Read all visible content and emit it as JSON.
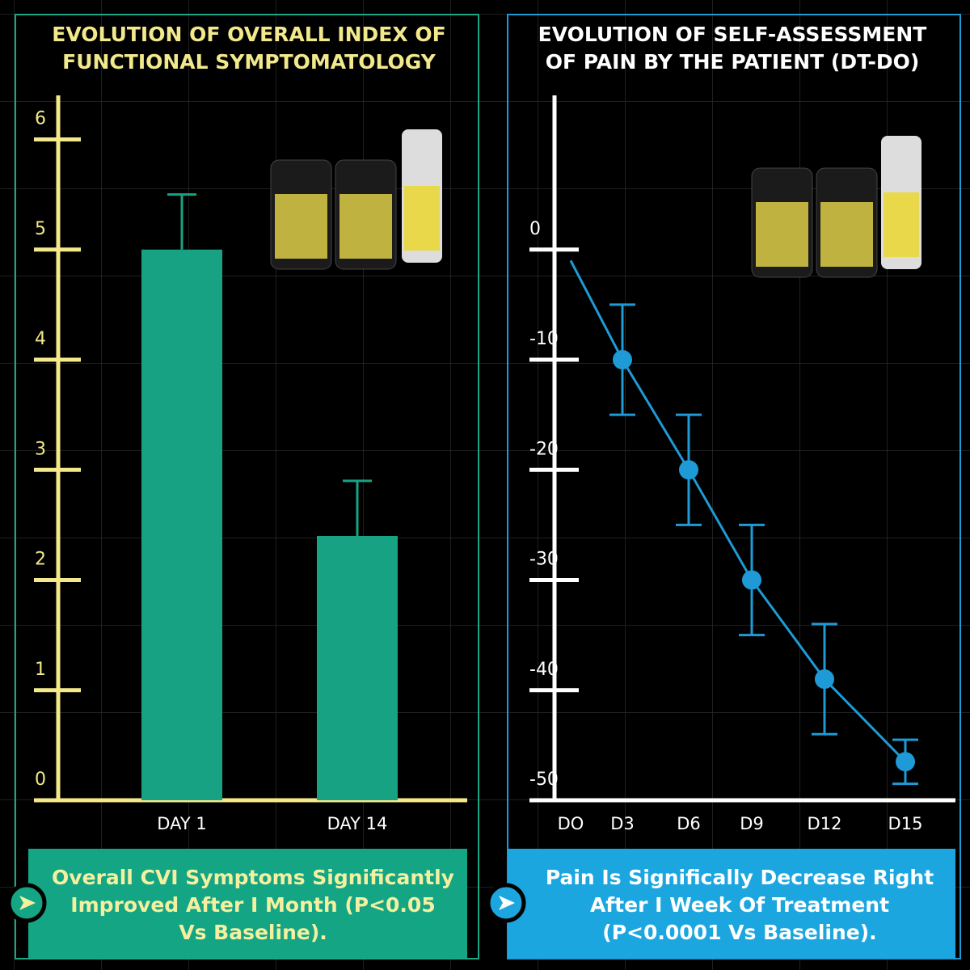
{
  "chart_data": [
    {
      "type": "bar",
      "title": [
        "EVOLUTION OF OVERALL INDEX OF",
        "FUNCTIONAL SYMPTOMATOLOGY"
      ],
      "categories": [
        "DAY 1",
        "DAY 14"
      ],
      "values": [
        5.0,
        2.4
      ],
      "errors": [
        0.5,
        0.5
      ],
      "color": "#17a383",
      "ylim": [
        0,
        6.4
      ],
      "yticks": [
        0,
        1,
        2,
        3,
        4,
        5,
        6
      ],
      "caption": [
        "Overall CVI Symptoms Significantly",
        "Improved After I Month (P<0.05",
        "Vs Baseline)."
      ]
    },
    {
      "type": "line",
      "title": [
        "EVOLUTION OF SELF-ASSESSMENT",
        "OF PAIN BY THE PATIENT (DT-DO)"
      ],
      "categories": [
        "DO",
        "D3",
        "D6",
        "D9",
        "D12",
        "D15"
      ],
      "values": [
        -1,
        -10,
        -20,
        -30,
        -39,
        -46.5
      ],
      "errors": [
        null,
        5,
        5,
        5,
        5,
        2
      ],
      "color": "#1e9ad6",
      "ylim": [
        -50,
        14
      ],
      "yticks": [
        0,
        -10,
        -20,
        -30,
        -40,
        -50
      ],
      "caption": [
        "Pain Is Significally Decrease Right",
        "After I Week Of Treatment",
        "(P<0.0001 Vs Baseline)."
      ]
    }
  ]
}
